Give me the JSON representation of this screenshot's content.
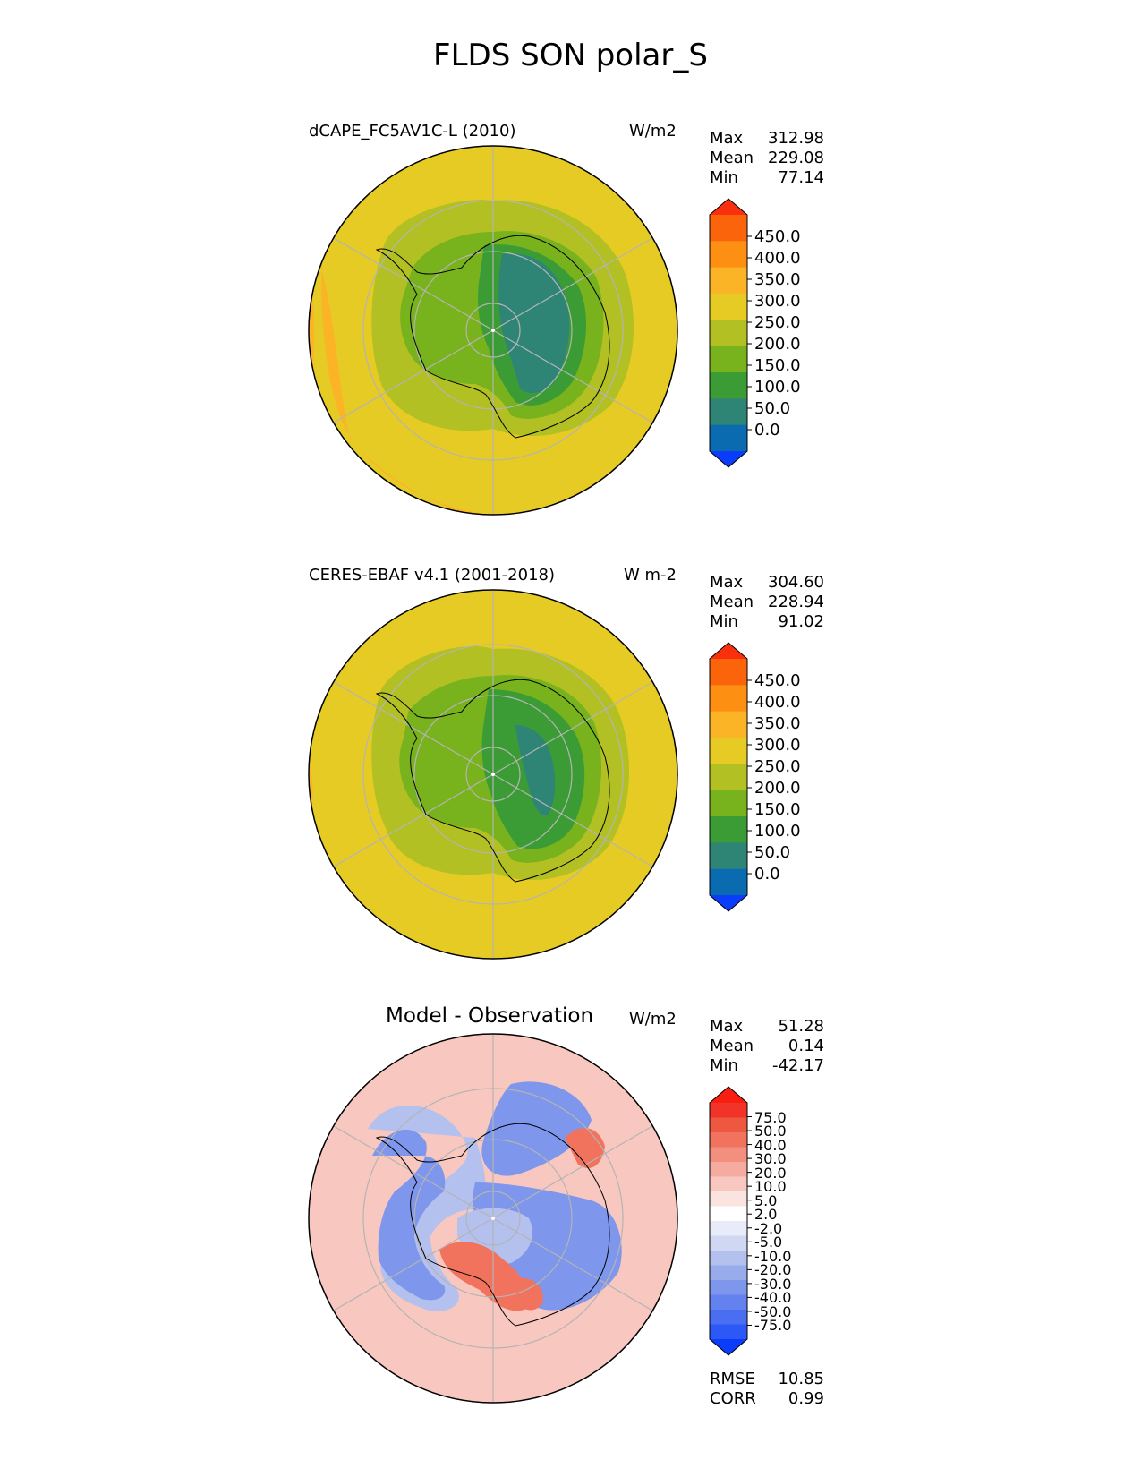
{
  "figure": {
    "title": "FLDS SON polar_S"
  },
  "panels": [
    {
      "id": "test",
      "name": "dCAPE_FC5AV1C-L (2010)",
      "units": "W/m2",
      "stats": [
        {
          "label": "Max",
          "value": "312.98"
        },
        {
          "label": "Mean",
          "value": "229.08"
        },
        {
          "label": "Min",
          "value": "77.14"
        }
      ],
      "colorbar": {
        "ticks": [
          "450.0",
          "400.0",
          "350.0",
          "300.0",
          "250.0",
          "200.0",
          "150.0",
          "100.0",
          "50.0",
          "0.0"
        ],
        "colors": [
          "#0a3dfb",
          "#0a6bb0",
          "#2f8575",
          "#3b9c35",
          "#78b21d",
          "#b2c023",
          "#e6cb25",
          "#fcb427",
          "#fd8f12",
          "#fb640a",
          "#f92f0d"
        ]
      }
    },
    {
      "id": "reference",
      "name": "CERES-EBAF v4.1 (2001-2018)",
      "units": "W m-2",
      "stats": [
        {
          "label": "Max",
          "value": "304.60"
        },
        {
          "label": "Mean",
          "value": "228.94"
        },
        {
          "label": "Min",
          "value": "91.02"
        }
      ],
      "colorbar": {
        "ticks": [
          "450.0",
          "400.0",
          "350.0",
          "300.0",
          "250.0",
          "200.0",
          "150.0",
          "100.0",
          "50.0",
          "0.0"
        ],
        "colors": [
          "#0a3dfb",
          "#0a6bb0",
          "#2f8575",
          "#3b9c35",
          "#78b21d",
          "#b2c023",
          "#e6cb25",
          "#fcb427",
          "#fd8f12",
          "#fb640a",
          "#f92f0d"
        ]
      }
    },
    {
      "id": "diff",
      "name": "Model - Observation",
      "units": "W/m2",
      "stats": [
        {
          "label": "Max",
          "value": "51.28"
        },
        {
          "label": "Mean",
          "value": "0.14"
        },
        {
          "label": "Min",
          "value": "-42.17"
        }
      ],
      "metrics": [
        {
          "label": "RMSE",
          "value": "10.85"
        },
        {
          "label": "CORR",
          "value": "0.99"
        }
      ],
      "colorbar": {
        "ticks": [
          "75.0",
          "50.0",
          "40.0",
          "30.0",
          "20.0",
          "10.0",
          "5.0",
          "2.0",
          "-2.0",
          "-5.0",
          "-10.0",
          "-20.0",
          "-30.0",
          "-40.0",
          "-50.0",
          "-75.0"
        ],
        "colors": [
          "#0b3bfb",
          "#2c58f7",
          "#4a6ef2",
          "#6482ef",
          "#7e96ec",
          "#98abeb",
          "#b4c1ee",
          "#cfd7f3",
          "#e8ecf8",
          "#ffffff",
          "#fbe3e0",
          "#f8c8c0",
          "#f5ab9f",
          "#f38f7e",
          "#f1735e",
          "#ee5840",
          "#f2332a",
          "#f91e0f"
        ]
      }
    }
  ],
  "map_colors": {
    "ocean_yellow": "#e6cb25",
    "ocean_orange": "#fcb427",
    "ring_olive": "#b2c023",
    "land_green": "#78b21d",
    "land_darkgreen": "#3b9c35",
    "land_teal": "#2f8575",
    "grid": "#b4b4b4",
    "diff_base": "#f8c8c0",
    "diff_blue": "#7e96ec",
    "diff_lightblue": "#b4c1ee",
    "diff_red": "#f1735e"
  }
}
